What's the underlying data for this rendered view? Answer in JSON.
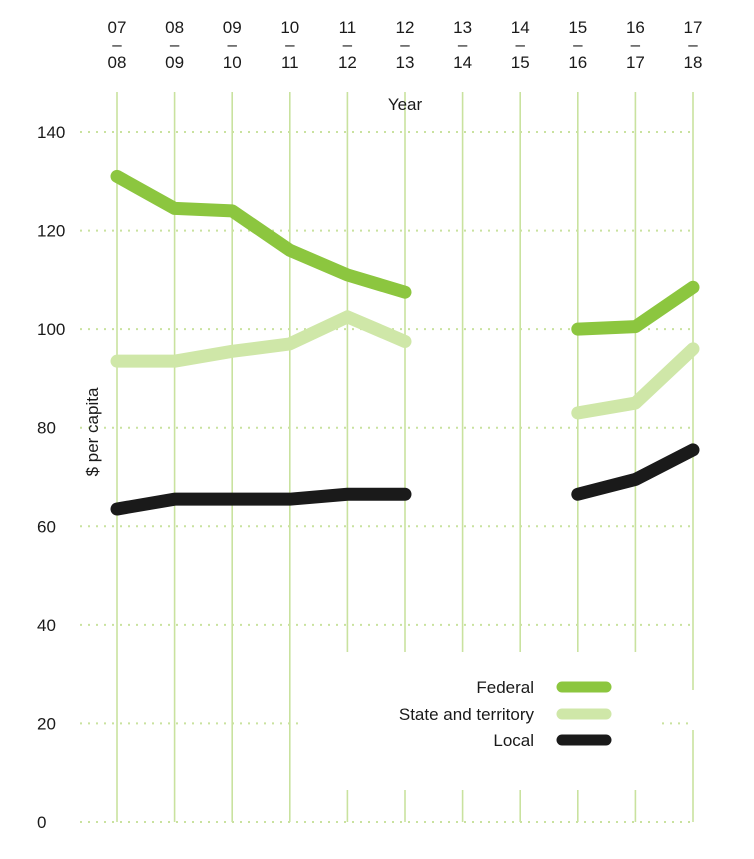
{
  "chart_data": {
    "type": "line",
    "x_top": [
      "07",
      "08",
      "09",
      "10",
      "11",
      "12",
      "13",
      "14",
      "15",
      "16",
      "17"
    ],
    "x_bottom": [
      "08",
      "09",
      "10",
      "11",
      "12",
      "13",
      "14",
      "15",
      "16",
      "17",
      "18"
    ],
    "x_sep": "–",
    "xlabel": "Year",
    "ylabel": "$ per capita",
    "ylim": [
      0,
      140
    ],
    "yticks": [
      0,
      20,
      40,
      60,
      80,
      100,
      120,
      140
    ],
    "grid": true,
    "legend_position": "bottom-right",
    "series": [
      {
        "name": "Federal",
        "color": "#8cc63f",
        "values": [
          131,
          124.5,
          124,
          116,
          111,
          107.5,
          null,
          null,
          100,
          100.5,
          108.5
        ]
      },
      {
        "name": "State and territory",
        "color": "#cfe7a8",
        "values": [
          93.5,
          93.5,
          95.5,
          97,
          102.5,
          97.5,
          null,
          null,
          83,
          85,
          96
        ]
      },
      {
        "name": "Local",
        "color": "#1a1a1a",
        "values": [
          63.5,
          65.5,
          65.5,
          65.5,
          66.5,
          66.5,
          null,
          null,
          66.5,
          69.5,
          75.5
        ]
      }
    ]
  }
}
